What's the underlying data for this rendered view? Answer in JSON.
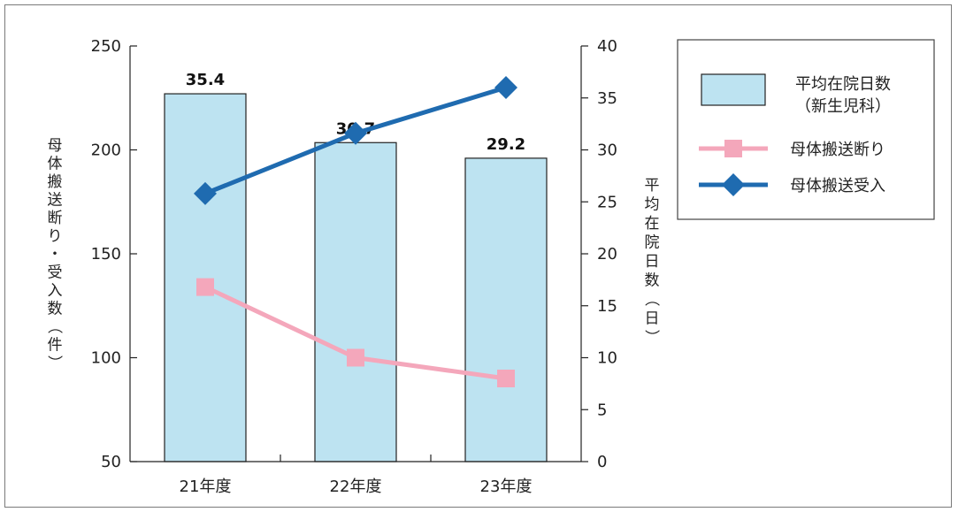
{
  "chart_data": {
    "type": "bar",
    "categories": [
      "21年度",
      "22年度",
      "23年度"
    ],
    "y_left": {
      "label": "母体搬送断り・受入数（件）",
      "range": [
        50,
        250
      ],
      "ticks": [
        50,
        100,
        150,
        200,
        250
      ]
    },
    "y_right": {
      "label": "平均在院日数（日）",
      "range": [
        0,
        40
      ],
      "ticks": [
        0,
        5,
        10,
        15,
        20,
        25,
        30,
        35,
        40
      ]
    },
    "series": [
      {
        "name": "平均在院日数",
        "name_line2": "（新生児科）",
        "kind": "bar",
        "axis": "right",
        "values": [
          35.4,
          30.7,
          29.2
        ],
        "data_labels": [
          "35.4",
          "30.7",
          "29.2"
        ],
        "color": "#bde3f1",
        "stroke": "#222222"
      },
      {
        "name": "母体搬送断り",
        "kind": "line",
        "axis": "left",
        "marker": "square",
        "values": [
          134,
          100,
          90
        ],
        "color": "#f4a7bb"
      },
      {
        "name": "母体搬送受入",
        "kind": "line",
        "axis": "left",
        "marker": "diamond",
        "values": [
          179,
          208,
          230
        ],
        "color": "#1f6bb0"
      }
    ],
    "legend_position": "right",
    "grid": false
  }
}
